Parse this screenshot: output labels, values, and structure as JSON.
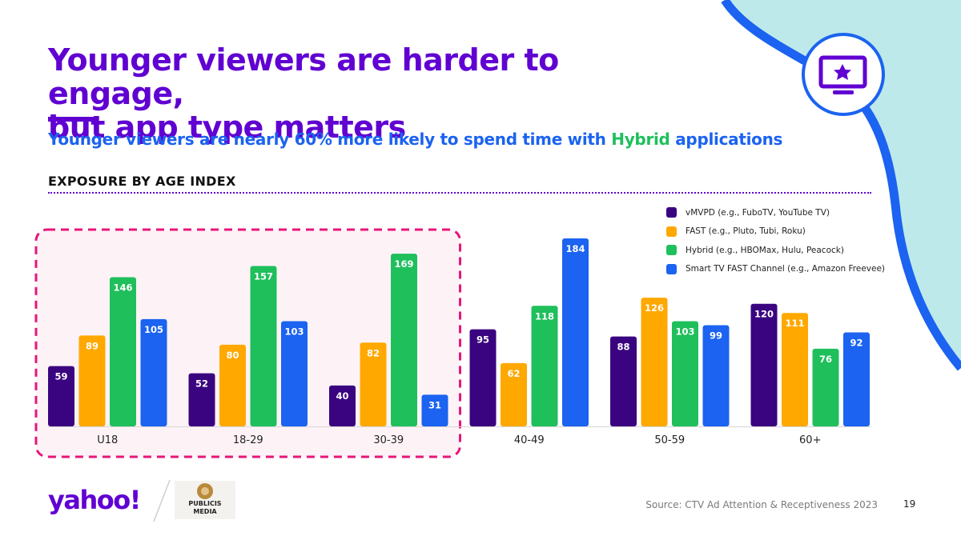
{
  "slide": {
    "title_line1": "Younger viewers are harder to engage,",
    "title_line2": "but app type matters",
    "subtitle_pre": "Younger viewers are nearly 60% more likely to spend time with ",
    "subtitle_highlight": "Hybrid",
    "subtitle_post": " applications",
    "section_label": "EXPOSURE BY AGE INDEX",
    "source": "Source: CTV Ad Attention & Receptiveness 2023",
    "page_number": "19"
  },
  "logos": {
    "yahoo": "yahoo!",
    "partner_line1": "PUBLICIS",
    "partner_line2": "MEDIA"
  },
  "icons": {
    "header_icon": "tv-star-icon"
  },
  "colors": {
    "title": "#6001D2",
    "subtitle": "#1B63F0",
    "highlight": "#1FBF5C",
    "highlight_box": "#E8157A",
    "series": [
      "#3A0480",
      "#FFA800",
      "#1FBF5C",
      "#1B63F0"
    ]
  },
  "chart_data": {
    "type": "bar",
    "title": "EXPOSURE BY AGE INDEX",
    "categories": [
      "U18",
      "18-29",
      "30-39",
      "40-49",
      "50-59",
      "60+"
    ],
    "series": [
      {
        "name": "vMVPD (e.g., FuboTV, YouTube TV)",
        "values": [
          59,
          52,
          40,
          95,
          88,
          120
        ]
      },
      {
        "name": "FAST (e.g., Pluto, Tubi, Roku)",
        "values": [
          89,
          80,
          82,
          62,
          126,
          111
        ]
      },
      {
        "name": "Hybrid (e.g., HBOMax, Hulu, Peacock)",
        "values": [
          146,
          157,
          169,
          118,
          103,
          76
        ]
      },
      {
        "name": "Smart TV FAST Channel (e.g., Amazon Freevee)",
        "values": [
          105,
          103,
          31,
          184,
          99,
          92
        ]
      }
    ],
    "ylim": [
      0,
      184
    ],
    "highlighted_categories": [
      "U18",
      "18-29",
      "30-39"
    ],
    "legend_position": "top-right",
    "xlabel": "",
    "ylabel": ""
  }
}
